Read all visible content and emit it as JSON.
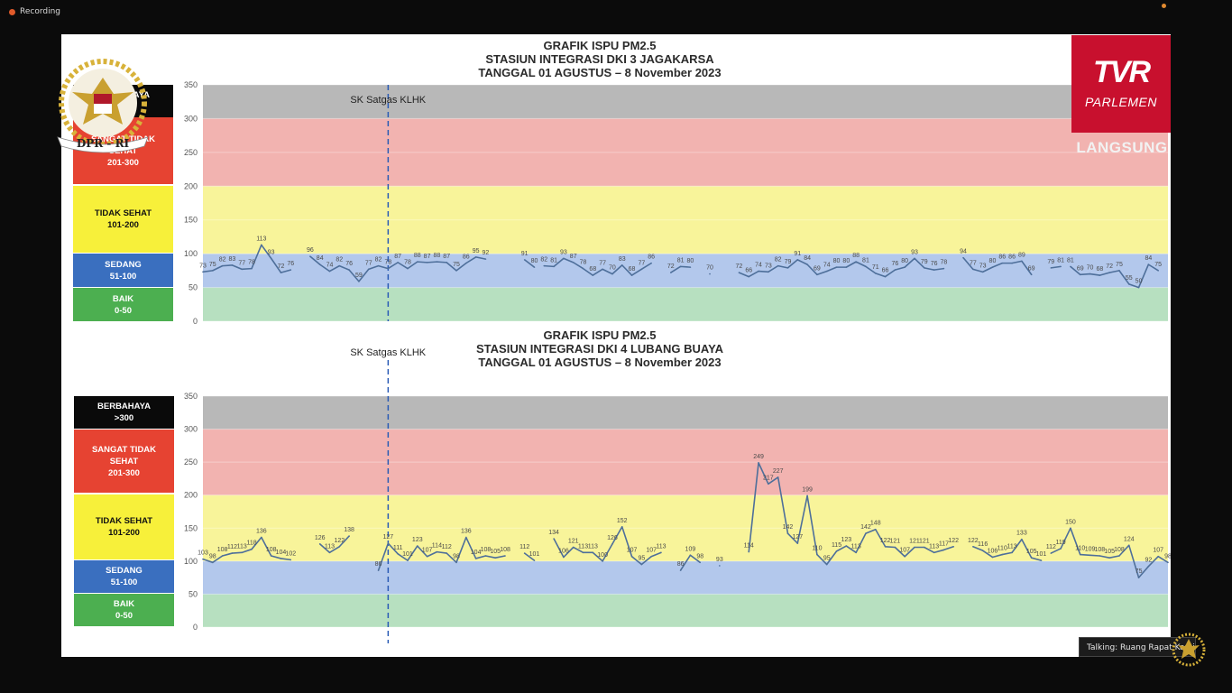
{
  "app": {
    "recording_label": "Recording",
    "broadcaster_logo": "TVR",
    "broadcaster_sub": "PARLEMEN",
    "live_label": "LANGSUNG",
    "emblem_text": "DPR - RI",
    "emblem_icon": "garuda-emblem-icon",
    "talking_label": "Talking: Ruang Rapat Komisi..."
  },
  "colors": {
    "berbahaya": "#0a0a0a",
    "sangat_tidak_sehat": "#e64332",
    "tidak_sehat": "#f7f03a",
    "sedang": "#3a6fbf",
    "baik": "#4caf50",
    "band_gray": "#b8b8b8",
    "band_red": "#f2b3b0",
    "band_yellow": "#f8f49a",
    "band_blue": "#b3c8ec",
    "band_green": "#b7e0c0",
    "line": "#4e6f9a",
    "sk_line": "#2a5bb5",
    "brand_red": "#c8102e"
  },
  "legend_items": {
    "berbahaya": "BERBAHAYA\n>300",
    "sangat_tidak_sehat": "SANGAT TIDAK\nSEHAT\n201-300",
    "tidak_sehat": "TIDAK SEHAT\n101-200",
    "sedang": "SEDANG\n51-100",
    "baik": "BAIK\n0-50"
  },
  "chart_data": [
    {
      "type": "line",
      "title_lines": [
        "GRAFIK ISPU PM2.5",
        "STASIUN INTEGRASI DKI 3 JAGAKARSA",
        "TANGGAL 01 AGUSTUS – 8 November 2023"
      ],
      "ylim": [
        0,
        350
      ],
      "yticks": [
        0,
        50,
        100,
        150,
        200,
        250,
        300,
        350
      ],
      "bands": [
        {
          "from": 0,
          "to": 50,
          "key": "band_green"
        },
        {
          "from": 50,
          "to": 100,
          "key": "band_blue"
        },
        {
          "from": 100,
          "to": 200,
          "key": "band_yellow"
        },
        {
          "from": 200,
          "to": 300,
          "key": "band_red"
        },
        {
          "from": 300,
          "to": 350,
          "key": "band_gray"
        }
      ],
      "annotation": {
        "label": "SK Satgas KLHK",
        "day_index": 19
      },
      "n_days": 100,
      "segments": [
        {
          "start": 0,
          "values": [
            73,
            75,
            82,
            83,
            77,
            78,
            113,
            93,
            72,
            76
          ]
        },
        {
          "start": 11,
          "values": [
            96,
            84,
            74,
            82,
            76,
            59,
            77,
            82,
            78,
            87,
            78,
            88,
            87,
            88,
            87,
            75,
            86,
            95,
            92
          ]
        },
        {
          "start": 33,
          "values": [
            91,
            80
          ]
        },
        {
          "start": 35,
          "values": [
            82,
            81,
            93,
            87,
            78,
            68,
            77,
            70,
            83,
            68,
            77,
            86
          ]
        },
        {
          "start": 48,
          "values": [
            72,
            81,
            80
          ]
        },
        {
          "start": 52,
          "values": [
            70
          ]
        },
        {
          "start": 55,
          "values": [
            72,
            66,
            74,
            73,
            82,
            79,
            91,
            84,
            69,
            74,
            80,
            80,
            88,
            81,
            71,
            66,
            76,
            80,
            93,
            79,
            76,
            78
          ]
        },
        {
          "start": 78,
          "values": [
            94,
            77,
            73,
            80,
            86,
            86,
            89,
            69
          ]
        },
        {
          "start": 87,
          "values": [
            79,
            81
          ]
        },
        {
          "start": 89,
          "values": [
            81,
            69,
            70,
            68,
            72,
            75,
            55,
            50,
            84,
            75
          ]
        }
      ]
    },
    {
      "type": "line",
      "title_lines": [
        "GRAFIK ISPU PM2.5",
        "STASIUN INTEGRASI DKI 4 LUBANG BUAYA",
        "TANGGAL 01 AGUSTUS – 8 November 2023"
      ],
      "ylim": [
        0,
        350
      ],
      "yticks": [
        0,
        50,
        100,
        150,
        200,
        250,
        300,
        350
      ],
      "bands": [
        {
          "from": 0,
          "to": 50,
          "key": "band_green"
        },
        {
          "from": 50,
          "to": 100,
          "key": "band_blue"
        },
        {
          "from": 100,
          "to": 200,
          "key": "band_yellow"
        },
        {
          "from": 200,
          "to": 300,
          "key": "band_red"
        },
        {
          "from": 300,
          "to": 350,
          "key": "band_gray"
        }
      ],
      "annotation": {
        "label": "SK Satgas KLHK",
        "day_index": 19
      },
      "n_days": 100,
      "segments": [
        {
          "start": 0,
          "values": [
            103,
            98,
            108,
            112,
            113,
            118,
            136,
            108,
            104,
            102
          ]
        },
        {
          "start": 12,
          "values": [
            126,
            113,
            122,
            138
          ]
        },
        {
          "start": 18,
          "values": [
            86,
            127,
            111,
            101,
            123,
            107,
            114,
            112,
            98,
            136,
            104,
            108,
            105,
            108
          ]
        },
        {
          "start": 33,
          "values": [
            112,
            101
          ]
        },
        {
          "start": 36,
          "values": [
            134,
            106,
            121,
            113,
            113,
            100,
            126,
            152,
            107,
            95,
            107,
            113
          ]
        },
        {
          "start": 49,
          "values": [
            86,
            109,
            98
          ]
        },
        {
          "start": 53,
          "values": [
            93
          ]
        },
        {
          "start": 56,
          "values": [
            114,
            249,
            217,
            227,
            142,
            127,
            199,
            110,
            95,
            115,
            123,
            113,
            142,
            148,
            122,
            121,
            107,
            121,
            121,
            113,
            117,
            122
          ]
        },
        {
          "start": 79,
          "values": [
            122,
            116,
            106,
            110,
            113,
            133,
            105,
            101
          ]
        },
        {
          "start": 87,
          "values": [
            112,
            119,
            150,
            110,
            109,
            108,
            105,
            108,
            124,
            75,
            92,
            107,
            98
          ]
        }
      ]
    }
  ]
}
